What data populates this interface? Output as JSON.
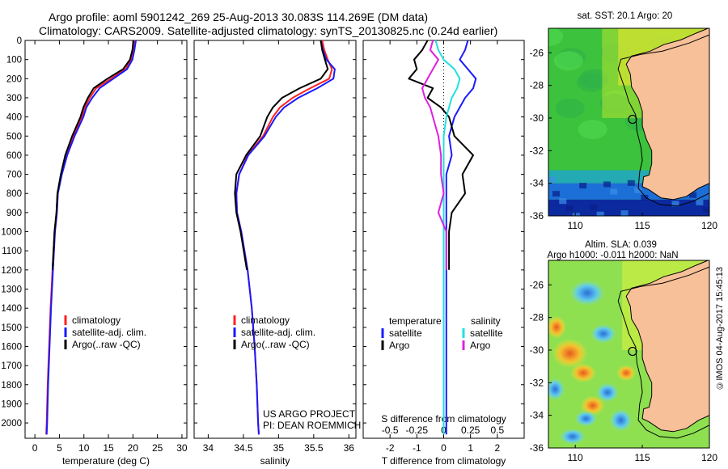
{
  "header": {
    "line1": "Argo profile: aoml 5901242_269 25-Aug-2013 30.083S 114.269E (DM data)",
    "line2": "Climatology: CARS2009. Satellite-adjusted climatology: synTS_20130825.nc (0.24d earlier)"
  },
  "side_note": "©IMOS 04-Aug-2017 15:45:13",
  "colors": {
    "climatology": "#ff2020",
    "satellite": "#1a1aff",
    "argo": "#000000",
    "argo_salinity_diff": "#e020e0",
    "satellite_salinity_diff": "#20e0e0"
  },
  "chart_data": [
    {
      "type": "line",
      "id": "temperature",
      "xlabel": "temperature (deg C)",
      "ylabel": "",
      "x_ticks": [
        "0",
        "5",
        "10",
        "15",
        "20",
        "25",
        "30"
      ],
      "y_ticks": [
        "0",
        "100",
        "200",
        "300",
        "400",
        "500",
        "600",
        "700",
        "800",
        "900",
        "1000",
        "1100",
        "1200",
        "1300",
        "1400",
        "1500",
        "1600",
        "1700",
        "1800",
        "1900",
        "2000"
      ],
      "xlim": [
        -2,
        31
      ],
      "ylim": [
        2080,
        0
      ],
      "legend": [
        "climatology",
        "satellite-adj. clim.",
        "Argo(..raw -QC)"
      ],
      "legend_position": "bottom-center",
      "series": [
        {
          "name": "climatology",
          "color": "#ff2020",
          "x": [
            20.3,
            20.0,
            19.6,
            18.5,
            15.5,
            12.5,
            11.2,
            10.2,
            9.6,
            7.8,
            6.4,
            5.4,
            4.6,
            4.4,
            4.0,
            3.6,
            3.2,
            2.9,
            2.6,
            2.4,
            2.3
          ],
          "y": [
            0,
            50,
            100,
            150,
            200,
            250,
            300,
            350,
            400,
            500,
            600,
            700,
            800,
            900,
            1000,
            1200,
            1400,
            1600,
            1800,
            2000,
            2060
          ]
        },
        {
          "name": "satellite-adj. clim.",
          "color": "#1a1aff",
          "x": [
            20.6,
            20.3,
            19.9,
            18.8,
            16.0,
            13.2,
            11.7,
            10.5,
            9.9,
            8.1,
            6.6,
            5.5,
            4.7,
            4.5,
            4.1,
            3.7,
            3.3,
            3.0,
            2.7,
            2.5,
            2.4
          ],
          "y": [
            0,
            50,
            100,
            150,
            200,
            250,
            300,
            350,
            400,
            500,
            600,
            700,
            800,
            900,
            1000,
            1200,
            1400,
            1600,
            1800,
            2000,
            2060
          ]
        },
        {
          "name": "Argo(..raw -QC)",
          "color": "#000000",
          "x": [
            20.1,
            19.9,
            19.4,
            18.0,
            14.8,
            12.0,
            10.8,
            9.9,
            9.3,
            7.6,
            6.2,
            5.3,
            4.6,
            4.4,
            4.0,
            3.6
          ],
          "y": [
            0,
            50,
            100,
            150,
            200,
            250,
            300,
            350,
            400,
            500,
            600,
            700,
            800,
            900,
            1000,
            1200
          ]
        }
      ]
    },
    {
      "type": "line",
      "id": "salinity",
      "xlabel": "salinity",
      "ylabel": "",
      "x_ticks": [
        "34",
        "34.5",
        "35",
        "35.5",
        "36"
      ],
      "xlim": [
        33.8,
        36.1
      ],
      "ylim": [
        2080,
        0
      ],
      "legend": [
        "climatology",
        "satellite-adj. clim.",
        "Argo(..raw -QC)"
      ],
      "legend_position": "bottom-center",
      "annotation": [
        "US ARGO PROJECT",
        "PI: DEAN ROEMMICH"
      ],
      "series": [
        {
          "name": "climatology",
          "color": "#ff2020",
          "x": [
            35.62,
            35.65,
            35.7,
            35.76,
            35.72,
            35.45,
            35.2,
            35.02,
            34.92,
            34.78,
            34.56,
            34.44,
            34.4,
            34.41,
            34.47,
            34.56,
            34.62,
            34.66,
            34.69,
            34.71,
            34.72
          ],
          "y": [
            0,
            50,
            100,
            150,
            200,
            250,
            300,
            350,
            400,
            500,
            600,
            700,
            800,
            900,
            1000,
            1200,
            1400,
            1600,
            1800,
            2000,
            2060
          ]
        },
        {
          "name": "satellite-adj. clim.",
          "color": "#1a1aff",
          "x": [
            35.6,
            35.63,
            35.68,
            35.8,
            35.78,
            35.55,
            35.28,
            35.08,
            34.96,
            34.8,
            34.57,
            34.44,
            34.4,
            34.41,
            34.47,
            34.56,
            34.62,
            34.66,
            34.69,
            34.71,
            34.72
          ],
          "y": [
            0,
            50,
            100,
            150,
            200,
            250,
            300,
            350,
            400,
            500,
            600,
            700,
            800,
            900,
            1000,
            1200,
            1400,
            1600,
            1800,
            2000,
            2060
          ]
        },
        {
          "name": "Argo(..raw -QC)",
          "color": "#000000",
          "x": [
            35.6,
            35.62,
            35.66,
            35.7,
            35.6,
            35.3,
            35.05,
            34.92,
            34.84,
            34.74,
            34.54,
            34.4,
            34.38,
            34.4,
            34.46,
            34.55
          ],
          "y": [
            0,
            50,
            100,
            150,
            200,
            250,
            300,
            350,
            400,
            500,
            600,
            700,
            800,
            900,
            1000,
            1200
          ]
        }
      ]
    },
    {
      "type": "line",
      "id": "differences",
      "xlabel": "T difference from climatology",
      "x_ticks": [
        "-2",
        "-1",
        "0",
        "1",
        "2"
      ],
      "top_label": "S difference from climatology",
      "top_ticks": [
        "-0.5",
        "-0.25",
        "0",
        "0.25",
        "0.5"
      ],
      "xlim": [
        -3,
        3
      ],
      "ylim": [
        2080,
        0
      ],
      "legend": [
        "temperature",
        "satellite",
        "Argo",
        "salinity",
        "satellite",
        "Argo"
      ],
      "legend_position": "bottom",
      "series": [
        {
          "name": "satellite",
          "group": "temperature",
          "color": "#1a1aff",
          "x": [
            0.9,
            0.8,
            0.6,
            0.9,
            1.2,
            1.1,
            0.8,
            0.6,
            0.4,
            0.2,
            0.3,
            0.1,
            0.1,
            0.1,
            0.1,
            0.1,
            0.1,
            0.1,
            0.1,
            0.1,
            0.1
          ],
          "y": [
            0,
            50,
            100,
            150,
            200,
            250,
            300,
            350,
            400,
            500,
            600,
            700,
            800,
            900,
            1000,
            1200,
            1400,
            1600,
            1800,
            2000,
            2060
          ]
        },
        {
          "name": "Argo",
          "group": "temperature",
          "color": "#000000",
          "x": [
            -0.6,
            -0.8,
            -1.1,
            -1.0,
            -1.3,
            -0.4,
            -0.6,
            -0.1,
            0.2,
            0.4,
            1.1,
            0.7,
            0.8,
            0.3,
            0.2,
            0.2
          ],
          "y": [
            0,
            50,
            100,
            150,
            200,
            250,
            300,
            350,
            400,
            500,
            600,
            700,
            800,
            900,
            1000,
            1200
          ]
        },
        {
          "name": "satellite",
          "group": "salinity",
          "color": "#20e0e0",
          "x": [
            -0.3,
            -0.2,
            0.0,
            0.4,
            0.6,
            0.5,
            0.3,
            0.2,
            0.1,
            0.0,
            0.0,
            0.0,
            0.0,
            0.0,
            0.0,
            0.0,
            0.0,
            0.0,
            0.0,
            0.0,
            0.0
          ],
          "y": [
            0,
            50,
            100,
            150,
            200,
            250,
            300,
            350,
            400,
            500,
            600,
            700,
            800,
            900,
            1000,
            1200,
            1400,
            1600,
            1800,
            2000,
            2060
          ]
        },
        {
          "name": "Argo",
          "group": "salinity",
          "color": "#e020e0",
          "x": [
            -0.4,
            -0.5,
            -0.2,
            -0.4,
            -0.6,
            -0.8,
            -0.7,
            -0.5,
            -0.4,
            -0.2,
            -0.1,
            -0.1,
            0.0,
            -0.2,
            0.1,
            0.1
          ],
          "y": [
            0,
            50,
            100,
            150,
            200,
            250,
            300,
            350,
            400,
            500,
            600,
            700,
            800,
            900,
            1000,
            1200
          ]
        }
      ]
    },
    {
      "type": "heatmap",
      "id": "sst_map",
      "title": "sat. SST: 20.1  Argo: 20",
      "x_ticks": [
        "110",
        "115",
        "120"
      ],
      "y_ticks": [
        "-26",
        "-28",
        "-30",
        "-32",
        "-34",
        "-36"
      ],
      "xlim": [
        108,
        120
      ],
      "ylim": [
        -36,
        -24.5
      ],
      "marker": {
        "lon": 114.27,
        "lat": -30.08
      }
    },
    {
      "type": "heatmap",
      "id": "sla_map",
      "title": "Altim. SLA: 0.039",
      "subtitle": "Argo h1000: -0.011  h2000: NaN",
      "x_ticks": [
        "110",
        "115",
        "120"
      ],
      "y_ticks": [
        "-26",
        "-28",
        "-30",
        "-32",
        "-34",
        "-36"
      ],
      "xlim": [
        108,
        120
      ],
      "ylim": [
        -36,
        -24.5
      ],
      "marker": {
        "lon": 114.27,
        "lat": -30.08
      }
    }
  ]
}
